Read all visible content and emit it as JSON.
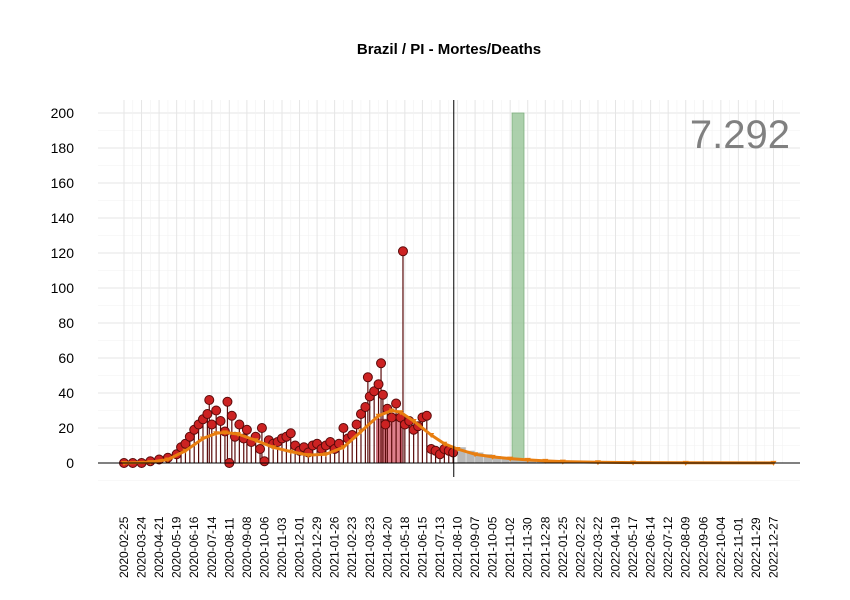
{
  "chart_data": {
    "type": "line",
    "title": "Brazil / PI - Mortes/Deaths",
    "total_label": "7.292",
    "xlabel": "",
    "ylabel": "",
    "ylim": [
      0,
      200
    ],
    "yticks": [
      0,
      20,
      40,
      60,
      80,
      100,
      120,
      140,
      160,
      180,
      200
    ],
    "xlim": [
      "2020-02-25",
      "2022-12-31"
    ],
    "x_tick_labels": [
      "2020-02-25",
      "2020-03-24",
      "2020-04-21",
      "2020-05-19",
      "2020-06-16",
      "2020-07-14",
      "2020-08-11",
      "2020-09-08",
      "2020-10-06",
      "2020-11-03",
      "2020-12-01",
      "2020-12-29",
      "2021-01-26",
      "2021-02-23",
      "2021-03-23",
      "2021-04-20",
      "2021-05-18",
      "2021-06-15",
      "2021-07-13",
      "2021-08-10",
      "2021-09-07",
      "2021-10-05",
      "2021-11-02",
      "2021-11-30",
      "2021-12-28",
      "2022-01-25",
      "2022-02-22",
      "2022-03-22",
      "2022-04-19",
      "2022-05-17",
      "2022-06-14",
      "2022-07-12",
      "2022-08-09",
      "2022-09-06",
      "2022-10-04",
      "2022-11-01",
      "2022-11-29",
      "2022-12-27"
    ],
    "grid": true,
    "current_date": "2021-08-04",
    "colors": {
      "points_fill": "#cc2222",
      "points_stroke": "#5a0a0a",
      "stem": "#5a0a0a",
      "trend": "#e87e10",
      "trend_marker": "#e87e10",
      "forecast_bars": "#b8b8b8",
      "highlight_green": "#9dc89d",
      "highlight_red": "#d96a78",
      "grid": "#e5e5e5",
      "text_total": "#808080"
    },
    "series": [
      {
        "type": "scatter",
        "points": [
          [
            "2020-02-25",
            0
          ],
          [
            "2020-03-10",
            0
          ],
          [
            "2020-03-24",
            0
          ],
          [
            "2020-04-07",
            1
          ],
          [
            "2020-04-21",
            2
          ],
          [
            "2020-05-05",
            3
          ],
          [
            "2020-05-19",
            5
          ],
          [
            "2020-05-26",
            9
          ],
          [
            "2020-06-02",
            11
          ],
          [
            "2020-06-09",
            15
          ],
          [
            "2020-06-16",
            19
          ],
          [
            "2020-06-23",
            22
          ],
          [
            "2020-06-30",
            25
          ],
          [
            "2020-07-07",
            28
          ],
          [
            "2020-07-10",
            36
          ],
          [
            "2020-07-14",
            22
          ],
          [
            "2020-07-21",
            30
          ],
          [
            "2020-07-28",
            24
          ],
          [
            "2020-08-04",
            18
          ],
          [
            "2020-08-08",
            35
          ],
          [
            "2020-08-11",
            0
          ],
          [
            "2020-08-15",
            27
          ],
          [
            "2020-08-20",
            15
          ],
          [
            "2020-08-27",
            22
          ],
          [
            "2020-09-03",
            14
          ],
          [
            "2020-09-08",
            19
          ],
          [
            "2020-09-15",
            12
          ],
          [
            "2020-09-22",
            15
          ],
          [
            "2020-09-29",
            8
          ],
          [
            "2020-10-02",
            20
          ],
          [
            "2020-10-06",
            1
          ],
          [
            "2020-10-13",
            13
          ],
          [
            "2020-10-20",
            11
          ],
          [
            "2020-10-27",
            12
          ],
          [
            "2020-11-03",
            14
          ],
          [
            "2020-11-10",
            15
          ],
          [
            "2020-11-17",
            17
          ],
          [
            "2020-11-24",
            10
          ],
          [
            "2020-12-01",
            7
          ],
          [
            "2020-12-08",
            9
          ],
          [
            "2020-12-15",
            6
          ],
          [
            "2020-12-22",
            10
          ],
          [
            "2020-12-29",
            11
          ],
          [
            "2021-01-05",
            8
          ],
          [
            "2021-01-12",
            10
          ],
          [
            "2021-01-19",
            12
          ],
          [
            "2021-01-26",
            8
          ],
          [
            "2021-02-02",
            11
          ],
          [
            "2021-02-09",
            20
          ],
          [
            "2021-02-16",
            14
          ],
          [
            "2021-02-23",
            16
          ],
          [
            "2021-03-02",
            22
          ],
          [
            "2021-03-09",
            28
          ],
          [
            "2021-03-16",
            32
          ],
          [
            "2021-03-20",
            49
          ],
          [
            "2021-03-23",
            38
          ],
          [
            "2021-03-30",
            41
          ],
          [
            "2021-04-06",
            45
          ],
          [
            "2021-04-10",
            57
          ],
          [
            "2021-04-13",
            39
          ],
          [
            "2021-04-17",
            22
          ],
          [
            "2021-04-20",
            31
          ],
          [
            "2021-04-27",
            26
          ],
          [
            "2021-05-04",
            34
          ],
          [
            "2021-05-11",
            26
          ],
          [
            "2021-05-15",
            121
          ],
          [
            "2021-05-18",
            22
          ],
          [
            "2021-05-25",
            24
          ],
          [
            "2021-06-01",
            19
          ],
          [
            "2021-06-08",
            21
          ],
          [
            "2021-06-15",
            26
          ],
          [
            "2021-06-22",
            27
          ],
          [
            "2021-06-29",
            8
          ],
          [
            "2021-07-06",
            7
          ],
          [
            "2021-07-13",
            5
          ],
          [
            "2021-07-20",
            8
          ],
          [
            "2021-07-27",
            7
          ],
          [
            "2021-08-03",
            6
          ]
        ]
      },
      {
        "type": "line",
        "points": [
          [
            "2020-02-25",
            0
          ],
          [
            "2020-04-07",
            0.5
          ],
          [
            "2020-05-05",
            2
          ],
          [
            "2020-06-02",
            7
          ],
          [
            "2020-06-30",
            14
          ],
          [
            "2020-07-21",
            17
          ],
          [
            "2020-08-04",
            17.5
          ],
          [
            "2020-08-25",
            16.5
          ],
          [
            "2020-09-22",
            13
          ],
          [
            "2020-10-20",
            9
          ],
          [
            "2020-11-17",
            6.5
          ],
          [
            "2020-12-15",
            4.5
          ],
          [
            "2021-01-12",
            5
          ],
          [
            "2021-02-09",
            9
          ],
          [
            "2021-03-09",
            18
          ],
          [
            "2021-04-06",
            27
          ],
          [
            "2021-04-27",
            30
          ],
          [
            "2021-05-11",
            29
          ],
          [
            "2021-06-01",
            24
          ],
          [
            "2021-06-29",
            16
          ],
          [
            "2021-07-20",
            11
          ],
          [
            "2021-08-10",
            8
          ],
          [
            "2021-09-07",
            5
          ],
          [
            "2021-10-05",
            3.5
          ],
          [
            "2021-11-02",
            2.5
          ],
          [
            "2021-11-30",
            1.8
          ],
          [
            "2021-12-28",
            1.2
          ],
          [
            "2022-01-25",
            0.8
          ],
          [
            "2022-03-22",
            0.4
          ],
          [
            "2022-05-17",
            0.2
          ],
          [
            "2022-08-09",
            0.1
          ],
          [
            "2022-12-27",
            0.05
          ]
        ]
      },
      {
        "type": "bar",
        "points": [
          [
            "2021-08-10",
            9
          ],
          [
            "2021-08-24",
            7
          ],
          [
            "2021-09-07",
            6
          ],
          [
            "2021-09-21",
            5
          ],
          [
            "2021-10-05",
            4
          ],
          [
            "2021-10-19",
            3.5
          ],
          [
            "2021-11-02",
            3
          ],
          [
            "2021-11-16",
            2.5
          ],
          [
            "2021-11-30",
            2
          ],
          [
            "2021-12-14",
            1.8
          ],
          [
            "2021-12-28",
            1.5
          ],
          [
            "2022-01-11",
            1.2
          ],
          [
            "2022-01-25",
            1
          ],
          [
            "2022-02-08",
            0.8
          ],
          [
            "2022-02-22",
            0.6
          ],
          [
            "2022-03-08",
            0.5
          ],
          [
            "2022-03-22",
            0.4
          ],
          [
            "2022-04-19",
            0.3
          ],
          [
            "2022-05-17",
            0.2
          ],
          [
            "2022-06-14",
            0.15
          ],
          [
            "2022-07-12",
            0.1
          ],
          [
            "2022-08-09",
            0.1
          ],
          [
            "2022-09-06",
            0.05
          ],
          [
            "2022-10-04",
            0.05
          ]
        ]
      }
    ],
    "highlights": [
      {
        "color": "green",
        "from": "2021-11-05",
        "to": "2021-11-24",
        "height": 200
      },
      {
        "color": "red",
        "from": "2021-04-03",
        "to": "2021-05-13",
        "height": 25
      }
    ]
  }
}
